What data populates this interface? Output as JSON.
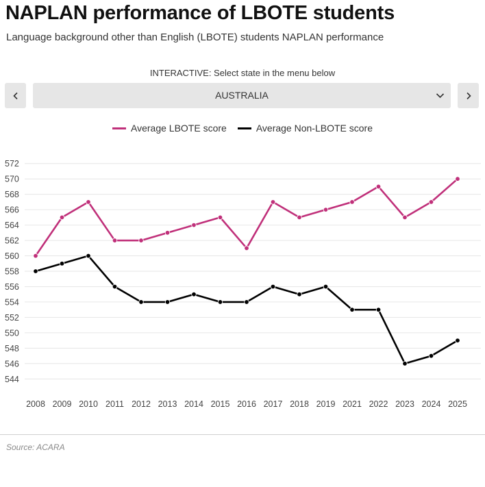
{
  "header": {
    "title": "NAPLAN performance of LBOTE students",
    "subtitle": "Language background other than English (LBOTE) students NAPLAN performance"
  },
  "controls": {
    "instruction": "INTERACTIVE: Select state in the menu below",
    "selected_state": "AUSTRALIA",
    "prev_icon": "chevron-left-icon",
    "next_icon": "chevron-right-icon",
    "dropdown_icon": "chevron-down-icon"
  },
  "colors": {
    "lbote": "#c0307a",
    "non_lbote": "#000000",
    "grid": "#e6e6e6"
  },
  "chart_data": {
    "type": "line",
    "title": "",
    "xlabel": "",
    "ylabel": "",
    "x": [
      "2008",
      "2009",
      "2010",
      "2011",
      "2012",
      "2013",
      "2014",
      "2015",
      "2016",
      "2017",
      "2018",
      "2019",
      "2021",
      "2022",
      "2023",
      "2024",
      "2025"
    ],
    "ylim": [
      543,
      573
    ],
    "yticks": [
      544,
      546,
      548,
      550,
      552,
      554,
      556,
      558,
      560,
      562,
      564,
      566,
      568,
      570,
      572
    ],
    "grid": true,
    "legend_position": "top-center",
    "series": [
      {
        "name": "Average LBOTE score",
        "color": "#c0307a",
        "values": [
          560,
          565,
          567,
          562,
          562,
          563,
          564,
          565,
          561,
          567,
          565,
          566,
          567,
          569,
          565,
          567,
          570
        ]
      },
      {
        "name": "Average Non-LBOTE score",
        "color": "#000000",
        "values": [
          558,
          559,
          560,
          556,
          554,
          554,
          555,
          554,
          554,
          556,
          555,
          556,
          553,
          553,
          546,
          547,
          549
        ]
      }
    ]
  },
  "footer": {
    "source": "Source: ACARA"
  }
}
